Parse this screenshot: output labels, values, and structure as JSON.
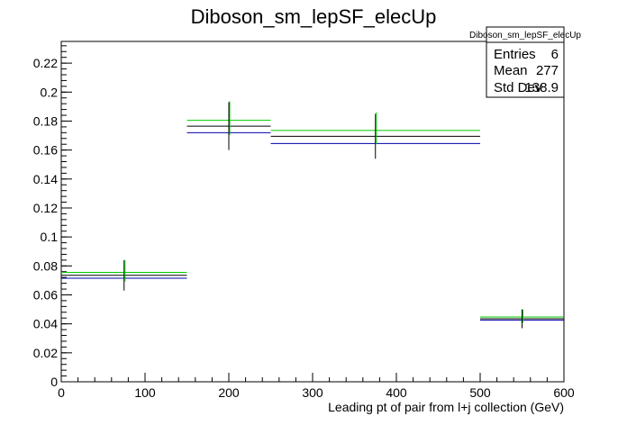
{
  "chart_data": {
    "type": "histogram",
    "title": "Diboson_sm_lepSF_elecUp",
    "xlabel": "Leading pt of pair from l+j collection (GeV)",
    "ylabel": "",
    "xlim": [
      0,
      600
    ],
    "ylim": [
      0,
      0.235
    ],
    "x_ticks": [
      0,
      100,
      200,
      300,
      400,
      500,
      600
    ],
    "y_ticks": [
      0,
      0.02,
      0.04,
      0.06,
      0.08,
      0.1,
      0.12,
      0.14,
      0.16,
      0.18,
      0.2,
      0.22
    ],
    "bins": [
      {
        "low": 0,
        "high": 150
      },
      {
        "low": 150,
        "high": 250
      },
      {
        "low": 250,
        "high": 500
      },
      {
        "low": 500,
        "high": 600
      }
    ],
    "series": [
      {
        "color": "#000000",
        "values": [
          0.0735,
          0.1765,
          0.1695,
          0.0435
        ],
        "errors": [
          0.0105,
          0.0165,
          0.0155,
          0.0065
        ]
      },
      {
        "color": "#00cc00",
        "values": [
          0.0755,
          0.1805,
          0.1735,
          0.0448
        ]
      },
      {
        "color": "#0000aa",
        "values": [
          0.0715,
          0.172,
          0.1645,
          0.0425
        ]
      }
    ],
    "grid": false,
    "stats_box": {
      "title": "Diboson_sm_lepSF_elecUp",
      "position": "top-right",
      "rows": [
        {
          "label": "Entries",
          "value": "6"
        },
        {
          "label": "Mean",
          "value": "277"
        },
        {
          "label": "Std Dev",
          "value": "138.9"
        }
      ]
    }
  }
}
